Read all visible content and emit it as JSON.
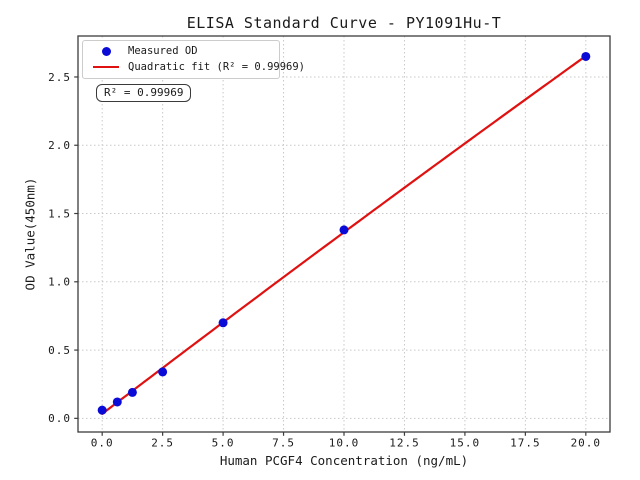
{
  "chart_data": {
    "type": "scatter",
    "title": "ELISA Standard Curve - PY1091Hu-T",
    "xlabel": "Human PCGF4 Concentration (ng/mL)",
    "ylabel": "OD Value(450nm)",
    "x": [
      0,
      0.625,
      1.25,
      2.5,
      5,
      10,
      20
    ],
    "series": [
      {
        "name": "Measured OD",
        "kind": "scatter",
        "color": "#0b0bd8",
        "values": [
          0.06,
          0.12,
          0.19,
          0.34,
          0.7,
          1.38,
          2.65
        ]
      },
      {
        "name": "Quadratic fit (R² = 0.99969)",
        "kind": "quadratic_fit",
        "color": "#e01111",
        "fit_range": [
          0,
          20
        ]
      }
    ],
    "annotation": "R² = 0.99969",
    "r_squared": 0.99969,
    "xticks": [
      0,
      2.5,
      5,
      7.5,
      10,
      12.5,
      15,
      17.5,
      20
    ],
    "yticks": [
      0,
      0.5,
      1,
      1.5,
      2,
      2.5
    ],
    "xlim": [
      -1,
      21
    ],
    "ylim": [
      -0.1,
      2.8
    ],
    "grid": true,
    "legend_position": "upper left",
    "colors": {
      "grid": "#c8c8c8",
      "spine": "#3c3c3c",
      "background": "#ffffff"
    }
  }
}
